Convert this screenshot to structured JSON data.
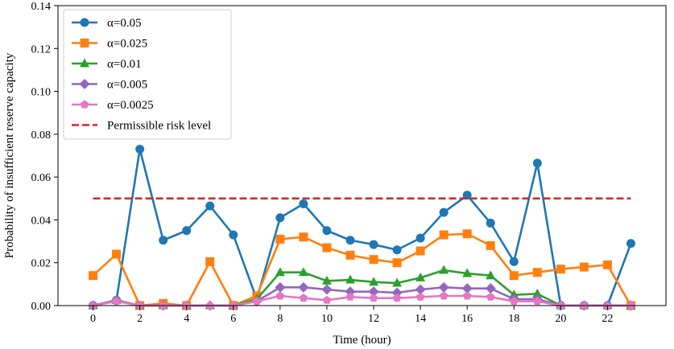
{
  "chart_data": {
    "type": "line",
    "title": "",
    "xlabel": "Time (hour)",
    "ylabel": "Probability of insufficient reserve capacity",
    "xlim": [
      -1.5,
      24.5
    ],
    "ylim": [
      0,
      0.14
    ],
    "xticks": [
      0,
      2,
      4,
      6,
      8,
      10,
      12,
      14,
      16,
      18,
      20,
      22
    ],
    "yticks": [
      0.0,
      0.02,
      0.04,
      0.06,
      0.08,
      0.1,
      0.12,
      0.14
    ],
    "ytick_labels": [
      "0.00",
      "0.02",
      "0.04",
      "0.06",
      "0.08",
      "0.10",
      "0.12",
      "0.14"
    ],
    "x": [
      0,
      1,
      2,
      3,
      4,
      5,
      6,
      7,
      8,
      9,
      10,
      11,
      12,
      13,
      14,
      15,
      16,
      17,
      18,
      19,
      20,
      21,
      22,
      23
    ],
    "legend_position": "upper-left",
    "series": [
      {
        "name": "α=0.05",
        "color": "#1f77b4",
        "marker": "circle",
        "values": [
          0.0,
          0.0025,
          0.073,
          0.0305,
          0.035,
          0.0465,
          0.033,
          0.003,
          0.041,
          0.0475,
          0.035,
          0.0305,
          0.0285,
          0.026,
          0.0315,
          0.0435,
          0.0515,
          0.0385,
          0.0205,
          0.0665,
          0.0,
          0.0,
          0.0,
          0.029
        ]
      },
      {
        "name": "α=0.025",
        "color": "#ff7f0e",
        "marker": "square",
        "values": [
          0.014,
          0.024,
          0.0,
          0.001,
          0.0,
          0.0205,
          0.0,
          0.0045,
          0.031,
          0.032,
          0.027,
          0.0235,
          0.0215,
          0.02,
          0.0255,
          0.033,
          0.0335,
          0.028,
          0.014,
          0.0155,
          0.017,
          0.018,
          0.019,
          0.0
        ]
      },
      {
        "name": "α=0.01",
        "color": "#2ca02c",
        "marker": "triangle",
        "values": [
          0.0,
          0.0025,
          0.0,
          0.0,
          0.0,
          0.0,
          0.0,
          0.003,
          0.0155,
          0.0155,
          0.0115,
          0.012,
          0.011,
          0.0105,
          0.013,
          0.0165,
          0.015,
          0.014,
          0.005,
          0.0055,
          0.0,
          0.0,
          0.0,
          0.0
        ]
      },
      {
        "name": "α=0.005",
        "color": "#9467bd",
        "marker": "diamond",
        "values": [
          0.0,
          0.0025,
          0.0,
          0.0,
          0.0,
          0.0,
          0.0,
          0.002,
          0.0085,
          0.0085,
          0.0075,
          0.0065,
          0.0065,
          0.006,
          0.0075,
          0.0085,
          0.008,
          0.008,
          0.003,
          0.003,
          0.0,
          0.0,
          0.0,
          0.0
        ]
      },
      {
        "name": "α=0.0025",
        "color": "#e377c2",
        "marker": "pentagon",
        "values": [
          0.0,
          0.002,
          0.0,
          0.0,
          0.0,
          0.0,
          0.0,
          0.002,
          0.0045,
          0.0035,
          0.0025,
          0.004,
          0.0035,
          0.0035,
          0.004,
          0.0045,
          0.0045,
          0.004,
          0.002,
          0.002,
          0.0,
          0.0,
          0.0,
          0.0
        ]
      }
    ],
    "reference_line": {
      "name": "Permissible risk level",
      "value": 0.05,
      "x_start": 0,
      "x_end": 23,
      "color": "#d62728",
      "style": "dashed"
    }
  }
}
